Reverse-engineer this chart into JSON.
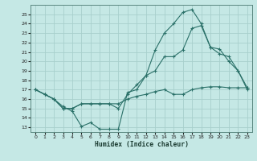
{
  "background_color": "#c5e8e5",
  "grid_color": "#a8d0cc",
  "line_color": "#2a7068",
  "xlabel": "Humidex (Indice chaleur)",
  "ylim": [
    12.5,
    26.0
  ],
  "xlim": [
    -0.5,
    23.5
  ],
  "yticks": [
    13,
    14,
    15,
    16,
    17,
    18,
    19,
    20,
    21,
    22,
    23,
    24,
    25
  ],
  "xticks": [
    0,
    1,
    2,
    3,
    4,
    5,
    6,
    7,
    8,
    9,
    10,
    11,
    12,
    13,
    14,
    15,
    16,
    17,
    18,
    19,
    20,
    21,
    22,
    23
  ],
  "line1_x": [
    0,
    1,
    2,
    3,
    4,
    5,
    6,
    7,
    8,
    9,
    10,
    11,
    12,
    13,
    14,
    15,
    16,
    17,
    18,
    19,
    20,
    21,
    22,
    23
  ],
  "line1_y": [
    17.0,
    16.5,
    16.0,
    15.2,
    14.7,
    13.1,
    13.5,
    12.8,
    12.8,
    12.8,
    16.7,
    17.0,
    18.5,
    21.2,
    23.0,
    24.0,
    25.2,
    25.5,
    24.0,
    21.5,
    20.8,
    20.5,
    19.0,
    17.0
  ],
  "line2_x": [
    0,
    1,
    2,
    3,
    4,
    5,
    6,
    7,
    8,
    9,
    10,
    11,
    12,
    13,
    14,
    15,
    16,
    17,
    18,
    19,
    20,
    21,
    22,
    23
  ],
  "line2_y": [
    17.0,
    16.5,
    16.0,
    15.0,
    15.0,
    15.5,
    15.5,
    15.5,
    15.5,
    15.0,
    16.5,
    17.5,
    18.5,
    19.0,
    20.5,
    20.5,
    21.2,
    23.5,
    23.8,
    21.5,
    21.3,
    20.0,
    19.0,
    17.2
  ],
  "line3_x": [
    0,
    1,
    2,
    3,
    4,
    5,
    6,
    7,
    8,
    9,
    10,
    11,
    12,
    13,
    14,
    15,
    16,
    17,
    18,
    19,
    20,
    21,
    22,
    23
  ],
  "line3_y": [
    17.0,
    16.5,
    16.0,
    15.0,
    15.0,
    15.5,
    15.5,
    15.5,
    15.5,
    15.5,
    16.0,
    16.3,
    16.5,
    16.8,
    17.0,
    16.5,
    16.5,
    17.0,
    17.2,
    17.3,
    17.3,
    17.2,
    17.2,
    17.2
  ]
}
